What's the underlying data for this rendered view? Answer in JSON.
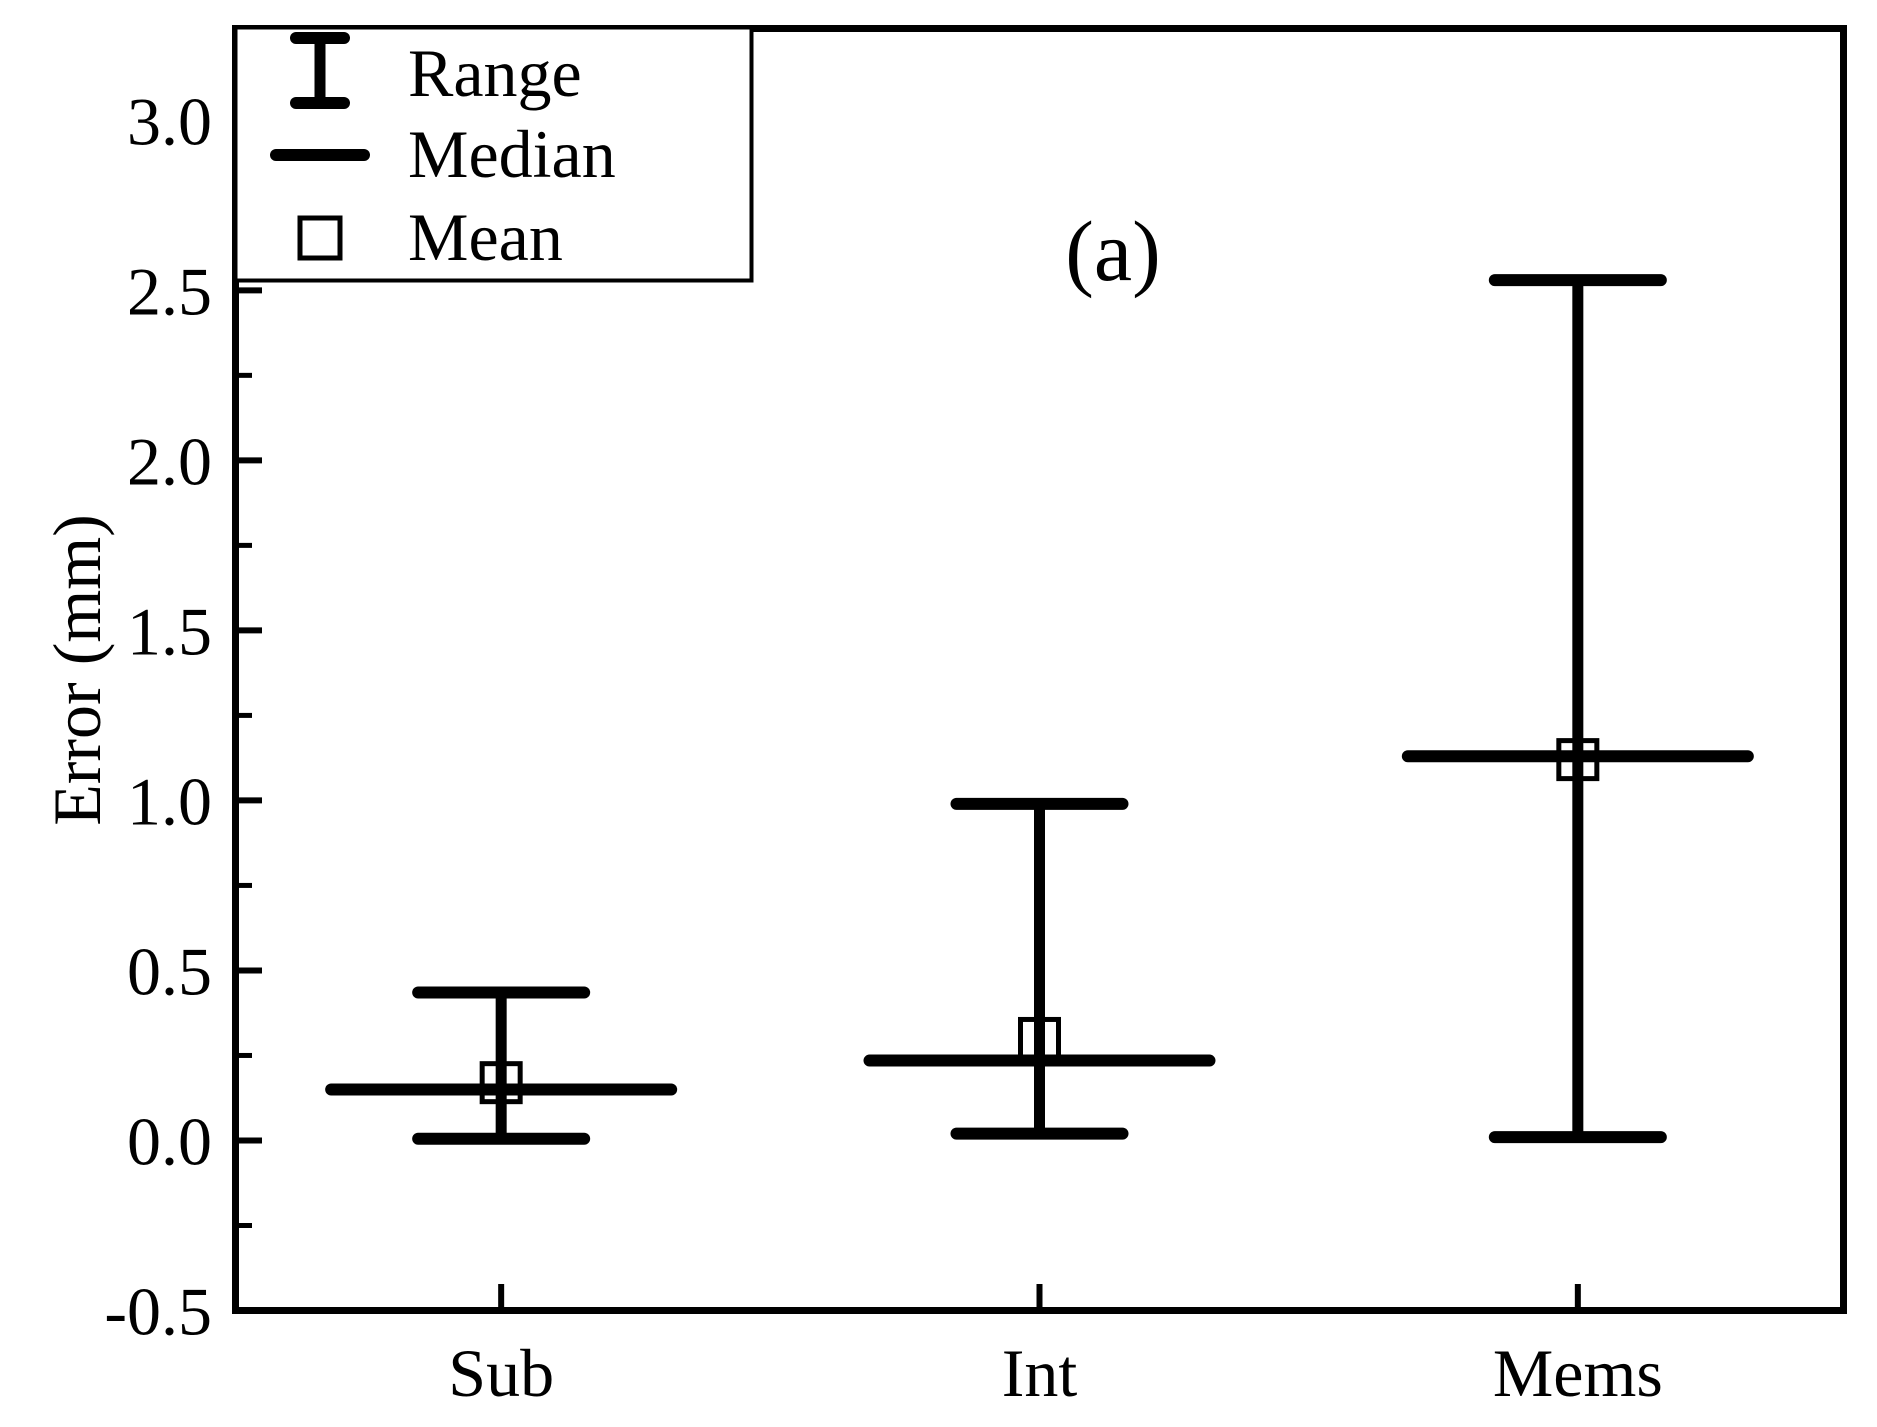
{
  "figure": {
    "background": "#ffffff",
    "ink": "#000000"
  },
  "chart_data": {
    "type": "range-plot",
    "title": "(a)",
    "xlabel": "",
    "ylabel": "Error (mm)",
    "categories": [
      "Sub",
      "Int",
      "Mems"
    ],
    "series": [
      {
        "category": "Sub",
        "min": 0.005,
        "median": 0.15,
        "mean": 0.17,
        "max": 0.435
      },
      {
        "category": "Int",
        "min": 0.02,
        "median": 0.235,
        "mean": 0.3,
        "max": 0.99
      },
      {
        "category": "Mems",
        "min": 0.01,
        "median": 1.13,
        "mean": 1.12,
        "max": 2.53
      }
    ],
    "ylim": [
      -0.5,
      3.27
    ],
    "xlim": [
      0.5,
      3.5
    ],
    "y_major_ticks": [
      3.0,
      2.5,
      2.0,
      1.5,
      1.0,
      0.5,
      0.0,
      -0.5
    ],
    "y_major_tick_labels": [
      "3.0",
      "2.5",
      "2.0",
      "1.5",
      "1.0",
      "0.5",
      "0.0",
      "-0.5"
    ],
    "y_minor_ticks": [
      3.25,
      2.75,
      2.25,
      1.75,
      1.25,
      0.75,
      0.25,
      -0.25
    ],
    "grid": false,
    "legend": {
      "position": "top-left",
      "entries": [
        {
          "symbol": "range-errorbar-icon",
          "label": "Range"
        },
        {
          "symbol": "median-line-icon",
          "label": "Median"
        },
        {
          "symbol": "mean-square-icon",
          "label": "Mean"
        }
      ]
    }
  }
}
